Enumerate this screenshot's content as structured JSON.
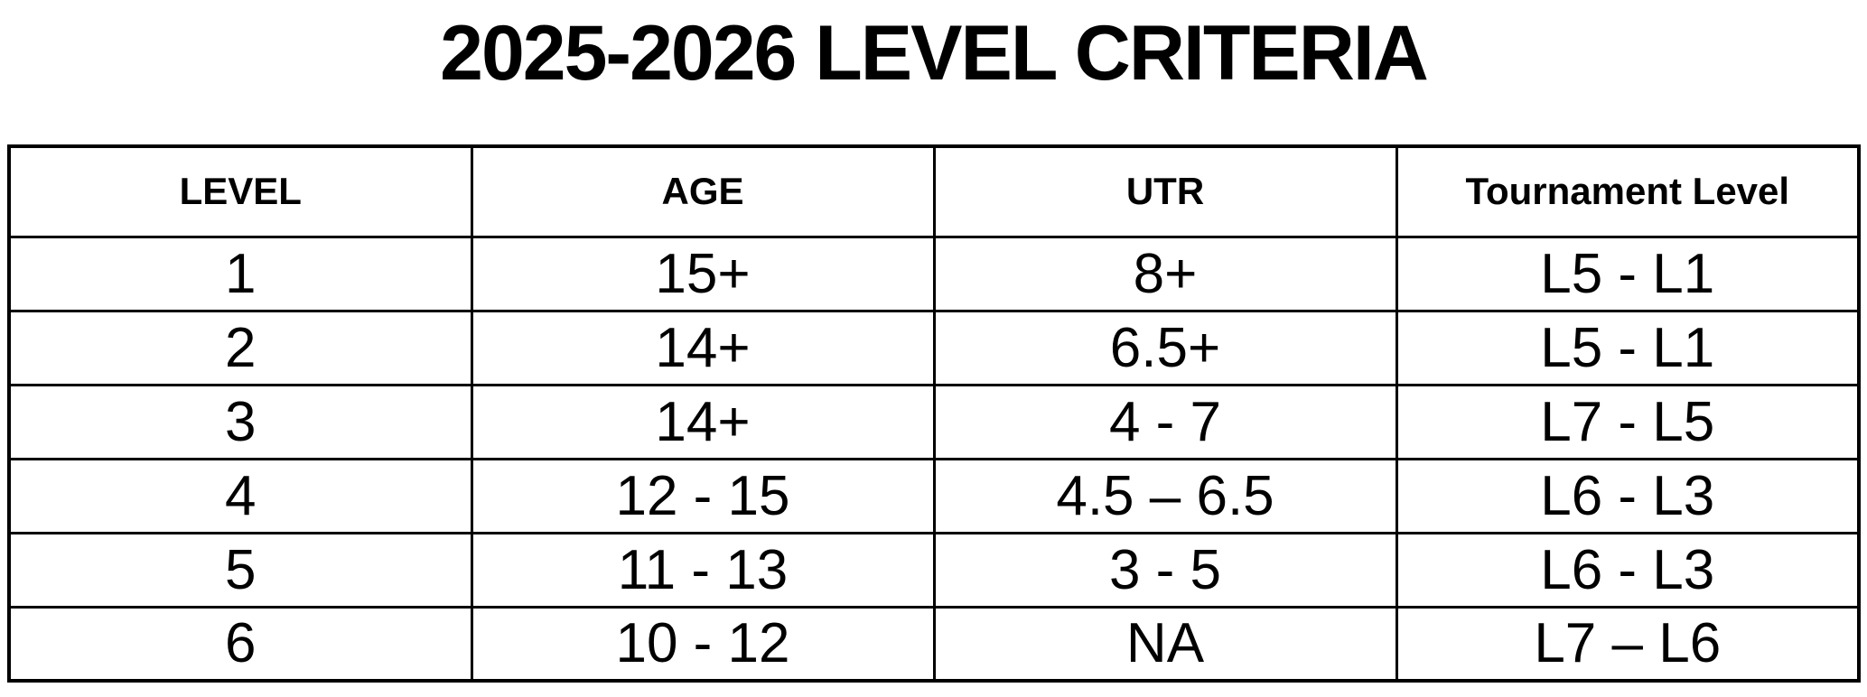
{
  "title": "2025-2026 LEVEL CRITERIA",
  "colors": {
    "background": "#ffffff",
    "text": "#000000",
    "border": "#000000"
  },
  "table": {
    "headers": [
      "LEVEL",
      "AGE",
      "UTR",
      "Tournament Level"
    ],
    "rows": [
      {
        "level": "1",
        "age": "15+",
        "utr": "8+",
        "tournament": "L5 - L1"
      },
      {
        "level": "2",
        "age": "14+",
        "utr": "6.5+",
        "tournament": "L5 - L1"
      },
      {
        "level": "3",
        "age": "14+",
        "utr": "4 - 7",
        "tournament": "L7 - L5"
      },
      {
        "level": "4",
        "age": "12 - 15",
        "utr": "4.5 – 6.5",
        "tournament": "L6 - L3"
      },
      {
        "level": "5",
        "age": "11 - 13",
        "utr": "3 - 5",
        "tournament": "L6 - L3"
      },
      {
        "level": "6",
        "age": "10 - 12",
        "utr": "NA",
        "tournament": "L7 – L6"
      }
    ]
  }
}
